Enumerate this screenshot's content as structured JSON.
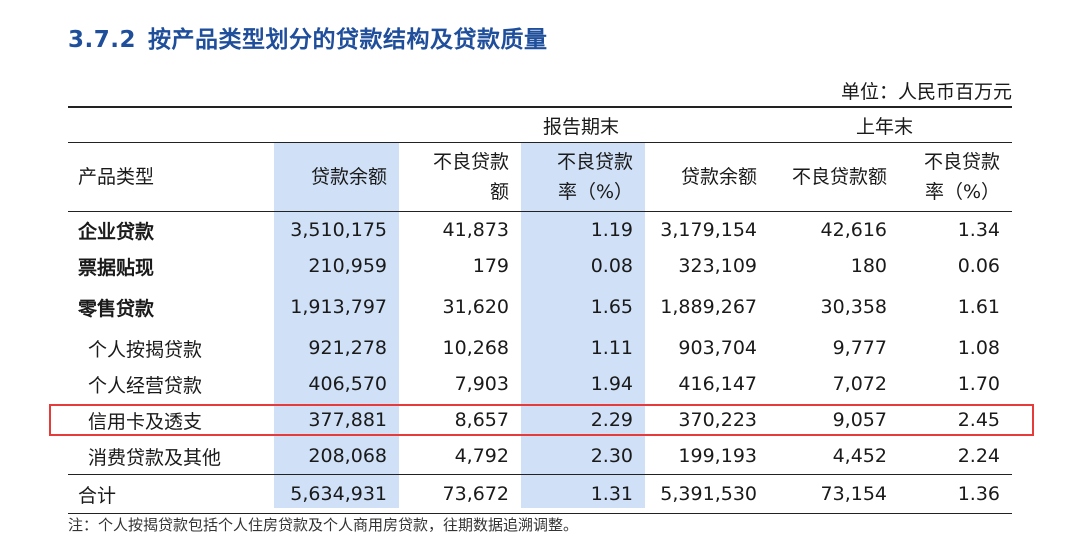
{
  "title": {
    "number": "3.7.2",
    "text": "按产品类型划分的贷款结构及贷款质量"
  },
  "unit": "单位：人民币百万元",
  "groups": {
    "current": "报告期末",
    "previous": "上年末"
  },
  "columns": {
    "product": "产品类型",
    "cur_balance": "贷款余额",
    "cur_npl_line1": "不良贷款",
    "cur_npl_line2": "额",
    "cur_ratio_line1": "不良贷款",
    "cur_ratio_line2": "率（%）",
    "prev_balance": "贷款余额",
    "prev_npl": "不良贷款额",
    "prev_ratio_line1": "不良贷款",
    "prev_ratio_line2": "率（%）"
  },
  "rows": [
    {
      "name": "企业贷款",
      "cells": [
        "3,510,175",
        "41,873",
        "1.19",
        "3,179,154",
        "42,616",
        "1.34"
      ]
    },
    {
      "name": "票据贴现",
      "cells": [
        "210,959",
        "179",
        "0.08",
        "323,109",
        "180",
        "0.06"
      ]
    },
    {
      "name": "零售贷款",
      "cells": [
        "1,913,797",
        "31,620",
        "1.65",
        "1,889,267",
        "30,358",
        "1.61"
      ]
    },
    {
      "name": "个人按揭贷款",
      "cells": [
        "921,278",
        "10,268",
        "1.11",
        "903,704",
        "9,777",
        "1.08"
      ]
    },
    {
      "name": "个人经营贷款",
      "cells": [
        "406,570",
        "7,903",
        "1.94",
        "416,147",
        "7,072",
        "1.70"
      ]
    },
    {
      "name": "信用卡及透支",
      "cells": [
        "377,881",
        "8,657",
        "2.29",
        "370,223",
        "9,057",
        "2.45"
      ]
    },
    {
      "name": "消费贷款及其他",
      "cells": [
        "208,068",
        "4,792",
        "2.30",
        "199,193",
        "4,452",
        "2.24"
      ]
    },
    {
      "name": "合计",
      "cells": [
        "5,634,931",
        "73,672",
        "1.31",
        "5,391,530",
        "73,154",
        "1.36"
      ]
    }
  ],
  "note": "注：个人按揭贷款包括个人住房贷款及个人商用房贷款，往期数据追溯调整。",
  "colors": {
    "title": "#1f4e9b",
    "shade": "#cfe0f7",
    "highlight_border": "#e53b3b"
  }
}
